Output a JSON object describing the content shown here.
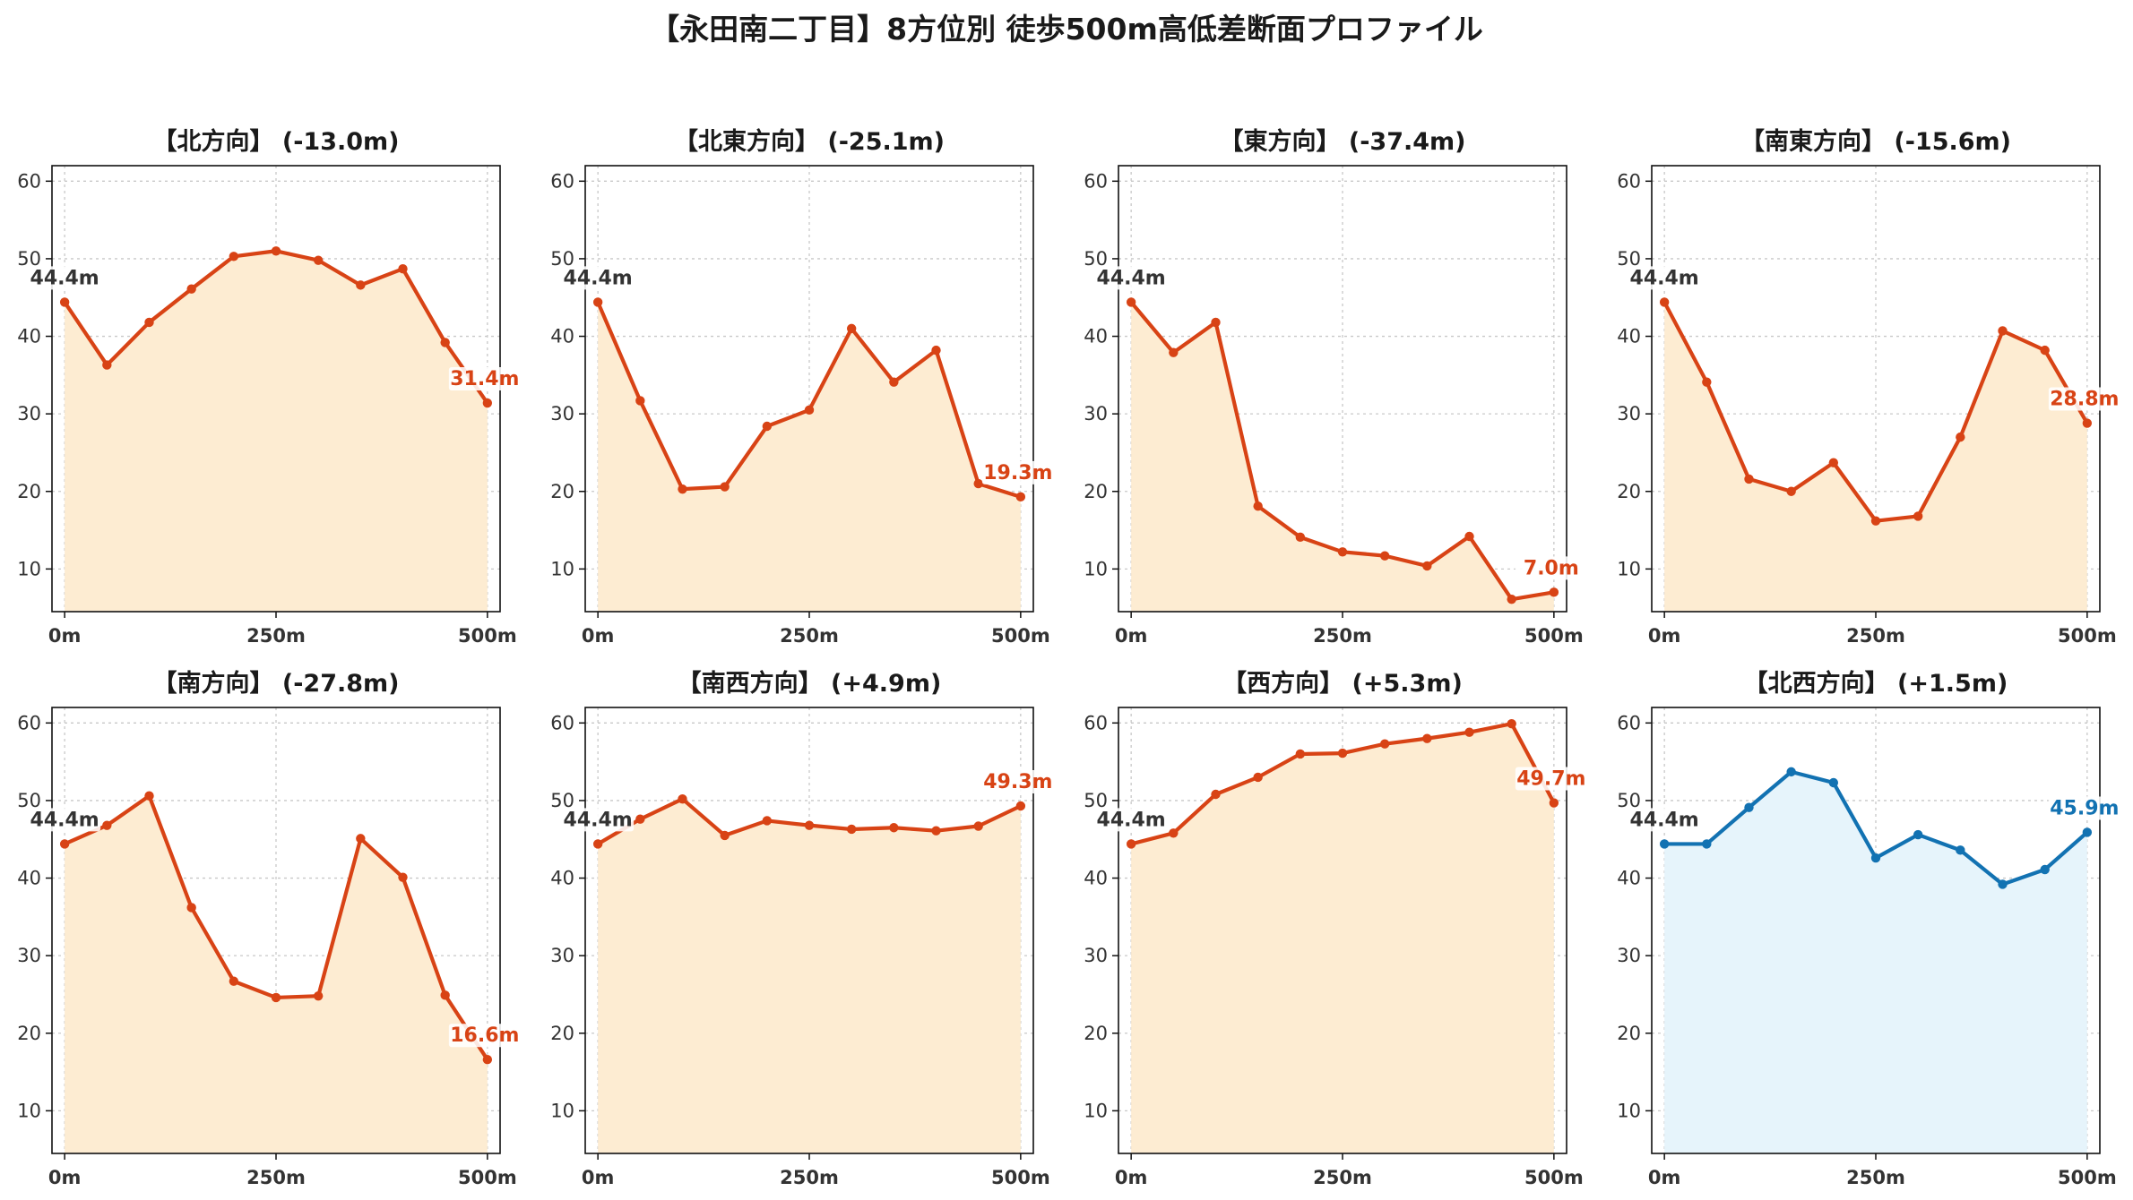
{
  "title": "【永田南二丁目】8方位別 徒歩500m高低差断面プロファイル",
  "colors": {
    "down_line": "#d84315",
    "down_fill": "#fdecd2",
    "up_line": "#1272b2",
    "up_fill": "#e6f4fb",
    "start_label": "#333333"
  },
  "chart_data": [
    {
      "type": "area",
      "title": "【北方向】 (-13.0m)",
      "direction": "down",
      "x": [
        0,
        50,
        100,
        150,
        200,
        250,
        300,
        350,
        400,
        450,
        500
      ],
      "values": [
        44.4,
        36.3,
        41.8,
        46.1,
        50.3,
        51.0,
        49.8,
        46.6,
        48.7,
        39.2,
        31.4
      ],
      "start_label": "44.4m",
      "end_label": "31.4m",
      "xticks": [
        "0m",
        "250m",
        "500m"
      ],
      "yticks": [
        10,
        20,
        30,
        40,
        50,
        60
      ],
      "xlim": [
        -15,
        515
      ],
      "ylim": [
        4.5,
        62
      ],
      "grid": true
    },
    {
      "type": "area",
      "title": "【北東方向】 (-25.1m)",
      "direction": "down",
      "x": [
        0,
        50,
        100,
        150,
        200,
        250,
        300,
        350,
        400,
        450,
        500
      ],
      "values": [
        44.4,
        31.7,
        20.3,
        20.6,
        28.4,
        30.5,
        41.0,
        34.1,
        38.2,
        21.0,
        19.3
      ],
      "start_label": "44.4m",
      "end_label": "19.3m",
      "xticks": [
        "0m",
        "250m",
        "500m"
      ],
      "yticks": [
        10,
        20,
        30,
        40,
        50,
        60
      ],
      "xlim": [
        -15,
        515
      ],
      "ylim": [
        4.5,
        62
      ],
      "grid": true
    },
    {
      "type": "area",
      "title": "【東方向】 (-37.4m)",
      "direction": "down",
      "x": [
        0,
        50,
        100,
        150,
        200,
        250,
        300,
        350,
        400,
        450,
        500
      ],
      "values": [
        44.4,
        37.9,
        41.8,
        18.1,
        14.1,
        12.2,
        11.7,
        10.4,
        14.2,
        6.1,
        7.0
      ],
      "start_label": "44.4m",
      "end_label": "7.0m",
      "xticks": [
        "0m",
        "250m",
        "500m"
      ],
      "yticks": [
        10,
        20,
        30,
        40,
        50,
        60
      ],
      "xlim": [
        -15,
        515
      ],
      "ylim": [
        4.5,
        62
      ],
      "grid": true
    },
    {
      "type": "area",
      "title": "【南東方向】 (-15.6m)",
      "direction": "down",
      "x": [
        0,
        50,
        100,
        150,
        200,
        250,
        300,
        350,
        400,
        450,
        500
      ],
      "values": [
        44.4,
        34.1,
        21.6,
        20.0,
        23.7,
        16.2,
        16.8,
        27.0,
        40.7,
        38.2,
        28.8
      ],
      "start_label": "44.4m",
      "end_label": "28.8m",
      "xticks": [
        "0m",
        "250m",
        "500m"
      ],
      "yticks": [
        10,
        20,
        30,
        40,
        50,
        60
      ],
      "xlim": [
        -15,
        515
      ],
      "ylim": [
        4.5,
        62
      ],
      "grid": true
    },
    {
      "type": "area",
      "title": "【南方向】 (-27.8m)",
      "direction": "down",
      "x": [
        0,
        50,
        100,
        150,
        200,
        250,
        300,
        350,
        400,
        450,
        500
      ],
      "values": [
        44.4,
        46.8,
        50.6,
        36.2,
        26.7,
        24.6,
        24.8,
        45.1,
        40.1,
        24.9,
        16.6
      ],
      "start_label": "44.4m",
      "end_label": "16.6m",
      "xticks": [
        "0m",
        "250m",
        "500m"
      ],
      "yticks": [
        10,
        20,
        30,
        40,
        50,
        60
      ],
      "xlim": [
        -15,
        515
      ],
      "ylim": [
        4.5,
        62
      ],
      "grid": true
    },
    {
      "type": "area",
      "title": "【南西方向】 (+4.9m)",
      "direction": "down",
      "x": [
        0,
        50,
        100,
        150,
        200,
        250,
        300,
        350,
        400,
        450,
        500
      ],
      "values": [
        44.4,
        47.6,
        50.2,
        45.5,
        47.4,
        46.8,
        46.3,
        46.5,
        46.1,
        46.7,
        49.3
      ],
      "start_label": "44.4m",
      "end_label": "49.3m",
      "xticks": [
        "0m",
        "250m",
        "500m"
      ],
      "yticks": [
        10,
        20,
        30,
        40,
        50,
        60
      ],
      "xlim": [
        -15,
        515
      ],
      "ylim": [
        4.5,
        62
      ],
      "grid": true
    },
    {
      "type": "area",
      "title": "【西方向】 (+5.3m)",
      "direction": "down",
      "x": [
        0,
        50,
        100,
        150,
        200,
        250,
        300,
        350,
        400,
        450,
        500
      ],
      "values": [
        44.4,
        45.8,
        50.8,
        53.0,
        56.0,
        56.1,
        57.3,
        58.0,
        58.8,
        59.9,
        49.7
      ],
      "start_label": "44.4m",
      "end_label": "49.7m",
      "xticks": [
        "0m",
        "250m",
        "500m"
      ],
      "yticks": [
        10,
        20,
        30,
        40,
        50,
        60
      ],
      "xlim": [
        -15,
        515
      ],
      "ylim": [
        4.5,
        62
      ],
      "grid": true
    },
    {
      "type": "area",
      "title": "【北西方向】 (+1.5m)",
      "direction": "up",
      "x": [
        0,
        50,
        100,
        150,
        200,
        250,
        300,
        350,
        400,
        450,
        500
      ],
      "values": [
        44.4,
        44.4,
        49.1,
        53.7,
        52.3,
        42.6,
        45.6,
        43.6,
        39.2,
        41.1,
        45.9
      ],
      "start_label": "44.4m",
      "end_label": "45.9m",
      "xticks": [
        "0m",
        "250m",
        "500m"
      ],
      "yticks": [
        10,
        20,
        30,
        40,
        50,
        60
      ],
      "xlim": [
        -15,
        515
      ],
      "ylim": [
        4.5,
        62
      ],
      "grid": true
    }
  ]
}
